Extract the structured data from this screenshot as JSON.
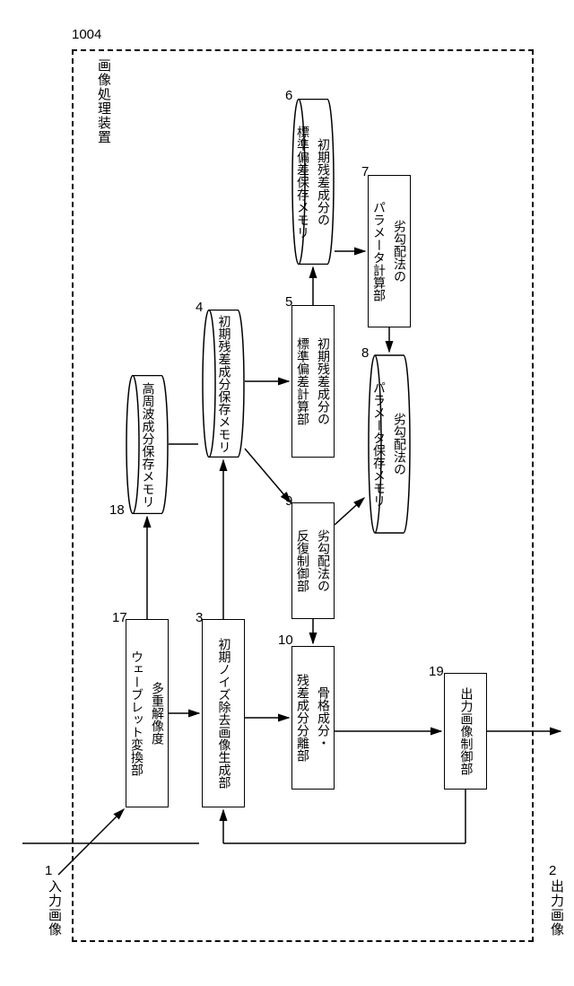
{
  "figure": {
    "device_number": "1004",
    "device_label": "画像処理装置",
    "input_label": "入力画像",
    "input_num": "1",
    "output_label": "出力画像",
    "output_num": "2",
    "colors": {
      "stroke": "#000000",
      "background": "#ffffff"
    },
    "nodes": {
      "n17": {
        "num": "17",
        "label": "多重解像度\nウェーブレット変換部",
        "type": "box"
      },
      "n18": {
        "num": "18",
        "label": "高周波成分\n保存メモリ",
        "type": "cylinder"
      },
      "n3": {
        "num": "3",
        "label": "初期ノイズ除去画像\n生成部",
        "type": "box"
      },
      "n4": {
        "num": "4",
        "label": "初期残差成分\n保存メモリ",
        "type": "cylinder"
      },
      "n5": {
        "num": "5",
        "label": "初期残差成分の\n標準偏差計算部",
        "type": "box"
      },
      "n6": {
        "num": "6",
        "label": "初期残差成分の\n標準偏差保存メモリ",
        "type": "cylinder"
      },
      "n7": {
        "num": "7",
        "label": "劣勾配法の\nパラメータ計算部",
        "type": "box"
      },
      "n8": {
        "num": "8",
        "label": "劣勾配法の\nパラメータ保存メモリ",
        "type": "cylinder"
      },
      "n9": {
        "num": "9",
        "label": "劣勾配法の\n反復制御部",
        "type": "box"
      },
      "n10": {
        "num": "10",
        "label": "骨格成分・\n残差成分分離部",
        "type": "box"
      },
      "n19": {
        "num": "19",
        "label": "出力画像\n制御部",
        "type": "box"
      }
    }
  }
}
